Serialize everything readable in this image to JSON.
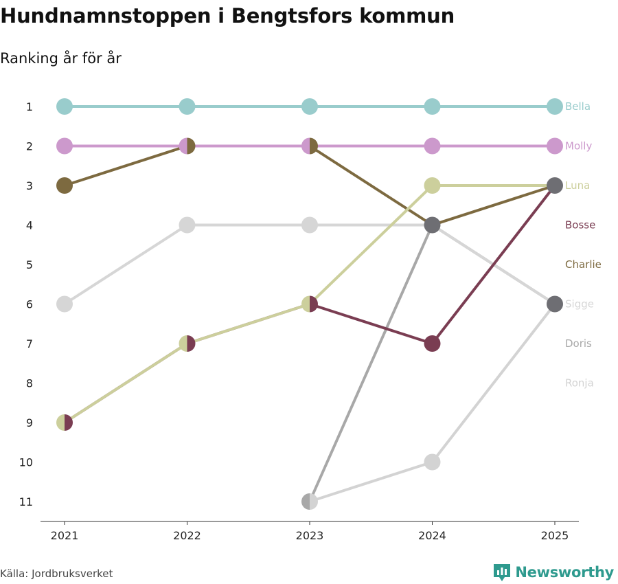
{
  "title": "Hundnamnstoppen i Bengtsfors kommun",
  "subtitle": "Ranking år för år",
  "source": "Källa: Jordbruksverket",
  "brand": {
    "name": "Newsworthy",
    "icon": "newsworthy-logo-icon",
    "color": "#2e9a8e"
  },
  "chart_data": {
    "type": "line",
    "title": "Hundnamnstoppen i Bengtsfors kommun",
    "subtitle": "Ranking år för år",
    "xlabel": "",
    "ylabel": "",
    "x": [
      "2021",
      "2022",
      "2023",
      "2024",
      "2025"
    ],
    "y_ticks": [
      "1",
      "2",
      "3",
      "4",
      "5",
      "6",
      "7",
      "8",
      "9",
      "10",
      "11"
    ],
    "ylim": [
      1,
      11
    ],
    "y_inverted": true,
    "series": [
      {
        "name": "Ronja",
        "color": "#d3d3d3",
        "values": [
          null,
          null,
          11,
          10,
          6
        ]
      },
      {
        "name": "Doris",
        "color": "#a8a8a8",
        "values": [
          null,
          null,
          11,
          4,
          6
        ]
      },
      {
        "name": "Sigge",
        "color": "#d6d6d6",
        "values": [
          6,
          4,
          4,
          4,
          6
        ]
      },
      {
        "name": "Charlie",
        "color": "#7d6a40",
        "values": [
          3,
          2,
          2,
          4,
          3
        ]
      },
      {
        "name": "Bosse",
        "color": "#7a3d52",
        "values": [
          9,
          7,
          6,
          7,
          3
        ]
      },
      {
        "name": "Luna",
        "color": "#cccf9c",
        "values": [
          9,
          7,
          6,
          3,
          3
        ]
      },
      {
        "name": "Molly",
        "color": "#cc99cc",
        "values": [
          2,
          2,
          2,
          2,
          2
        ]
      },
      {
        "name": "Bella",
        "color": "#99cccc",
        "values": [
          1,
          1,
          1,
          1,
          1
        ]
      }
    ],
    "end_labels": [
      {
        "name": "Bella",
        "rank": 1,
        "color": "#99cccc"
      },
      {
        "name": "Molly",
        "rank": 2,
        "color": "#cc99cc"
      },
      {
        "name": "Luna",
        "rank": 3,
        "color": "#cccf9c"
      },
      {
        "name": "Bosse",
        "rank": 4,
        "color": "#7a3d52"
      },
      {
        "name": "Charlie",
        "rank": 5,
        "color": "#7d6a40"
      },
      {
        "name": "Sigge",
        "rank": 6,
        "color": "#d6d6d6"
      },
      {
        "name": "Doris",
        "rank": 7,
        "color": "#a8a8a8"
      },
      {
        "name": "Ronja",
        "rank": 8,
        "color": "#d3d3d3"
      }
    ],
    "tie_color": "#6e6e73"
  }
}
